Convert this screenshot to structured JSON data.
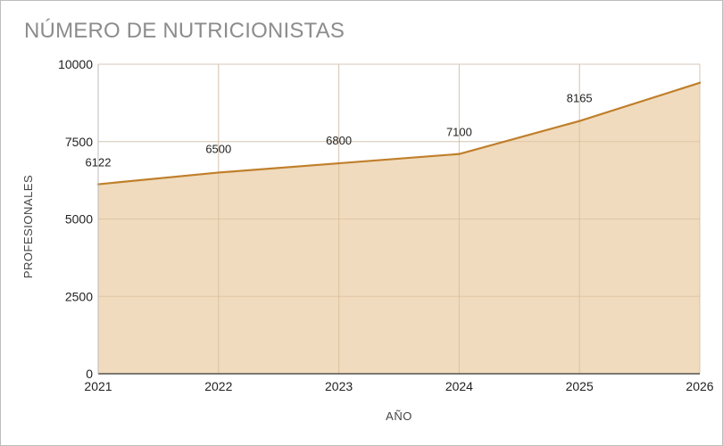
{
  "chart_data": {
    "type": "area",
    "title": "NÚMERO DE NUTRICIONISTAS",
    "xlabel": "AÑO",
    "ylabel": "PROFESIONALES",
    "x": [
      2021,
      2022,
      2023,
      2024,
      2025,
      2026
    ],
    "series": [
      {
        "values": [
          6122,
          6500,
          6800,
          7100,
          8165,
          9400
        ]
      }
    ],
    "data_labels": [
      "6122",
      "6500",
      "6800",
      "7100",
      "8165",
      ""
    ],
    "ylim": [
      0,
      10000
    ],
    "yticks": [
      0,
      2500,
      5000,
      7500,
      10000
    ],
    "xlim": [
      2021,
      2026
    ],
    "grid": true,
    "legend": "none",
    "colors": {
      "line": "#c07f2b",
      "fill": "#edd5b3",
      "grid": "#dcdcdc",
      "title": "#8c8c8c"
    }
  }
}
